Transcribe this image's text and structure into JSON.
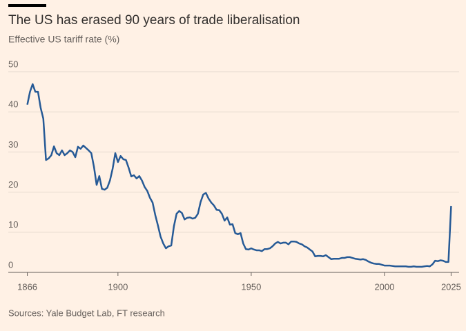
{
  "chart_data": {
    "type": "line",
    "title": "The US has erased 90 years of trade liberalisation",
    "subtitle": "Effective US tariff rate (%)",
    "source": "Sources: Yale Budget Lab, FT research",
    "x": [
      1866,
      1867,
      1868,
      1869,
      1870,
      1871,
      1872,
      1873,
      1874,
      1875,
      1876,
      1877,
      1878,
      1879,
      1880,
      1881,
      1882,
      1883,
      1884,
      1885,
      1886,
      1887,
      1888,
      1889,
      1890,
      1891,
      1892,
      1893,
      1894,
      1895,
      1896,
      1897,
      1898,
      1899,
      1900,
      1901,
      1902,
      1903,
      1904,
      1905,
      1906,
      1907,
      1908,
      1909,
      1910,
      1911,
      1912,
      1913,
      1914,
      1915,
      1916,
      1917,
      1918,
      1919,
      1920,
      1921,
      1922,
      1923,
      1924,
      1925,
      1926,
      1927,
      1928,
      1929,
      1930,
      1931,
      1932,
      1933,
      1934,
      1935,
      1936,
      1937,
      1938,
      1939,
      1940,
      1941,
      1942,
      1943,
      1944,
      1945,
      1946,
      1947,
      1948,
      1949,
      1950,
      1951,
      1952,
      1953,
      1954,
      1955,
      1956,
      1957,
      1958,
      1959,
      1960,
      1961,
      1962,
      1963,
      1964,
      1965,
      1966,
      1967,
      1968,
      1969,
      1970,
      1971,
      1972,
      1973,
      1974,
      1975,
      1976,
      1977,
      1978,
      1979,
      1980,
      1981,
      1982,
      1983,
      1984,
      1985,
      1986,
      1987,
      1988,
      1989,
      1990,
      1991,
      1992,
      1993,
      1994,
      1995,
      1996,
      1997,
      1998,
      1999,
      2000,
      2001,
      2002,
      2003,
      2004,
      2005,
      2006,
      2007,
      2008,
      2009,
      2010,
      2011,
      2012,
      2013,
      2014,
      2015,
      2016,
      2017,
      2018,
      2019,
      2020,
      2021,
      2022,
      2023,
      2024,
      2025
    ],
    "series": [
      {
        "name": "Effective US tariff rate",
        "color": "#265a96",
        "values": [
          41.8,
          45,
          46.9,
          45,
          45,
          41,
          38.3,
          28,
          28.4,
          29.2,
          31.4,
          29.7,
          29.2,
          30.4,
          29.2,
          29.7,
          30.4,
          30,
          28.7,
          31.3,
          30.8,
          31.6,
          31,
          30.4,
          29.7,
          26.3,
          21.8,
          24,
          20.8,
          20.6,
          21.1,
          22.9,
          25.8,
          29.7,
          27.5,
          29,
          28.2,
          28,
          26.1,
          23.9,
          24.2,
          23.4,
          24,
          22.9,
          21.3,
          20.3,
          18.6,
          17.4,
          14.3,
          11.7,
          8.9,
          7.2,
          6,
          6.5,
          6.7,
          11.5,
          14.6,
          15.3,
          14.8,
          13.2,
          13.6,
          13.7,
          13.4,
          13.6,
          14.6,
          17.5,
          19.4,
          19.8,
          18.4,
          17.4,
          16.7,
          15.6,
          15.5,
          14.6,
          12.9,
          13.7,
          11.9,
          12,
          9.8,
          9.5,
          9.8,
          7.2,
          5.8,
          5.7,
          6,
          5.7,
          5.5,
          5.5,
          5.3,
          5.8,
          5.8,
          6,
          6.5,
          7.2,
          7.6,
          7.2,
          7.4,
          7.4,
          7,
          7.7,
          7.7,
          7.6,
          7.2,
          7,
          6.5,
          6.2,
          5.7,
          5.2,
          4,
          4.1,
          4.1,
          4,
          4.3,
          3.8,
          3.3,
          3.4,
          3.4,
          3.4,
          3.6,
          3.6,
          3.8,
          3.8,
          3.6,
          3.4,
          3.3,
          3.2,
          3.3,
          3.1,
          2.7,
          2.4,
          2.2,
          2.1,
          2.1,
          1.9,
          1.7,
          1.7,
          1.7,
          1.6,
          1.5,
          1.5,
          1.5,
          1.5,
          1.5,
          1.4,
          1.4,
          1.5,
          1.4,
          1.4,
          1.4,
          1.5,
          1.6,
          1.5,
          2,
          2.9,
          2.8,
          3,
          2.9,
          2.6,
          2.6,
          16.5
        ]
      }
    ],
    "xlim": [
      1863,
      2028
    ],
    "xticks": [
      1866,
      1900,
      1950,
      2000,
      2025
    ],
    "ylim": [
      0,
      50
    ],
    "yticks": [
      0,
      10,
      20,
      30,
      40,
      50
    ],
    "grid": true
  }
}
